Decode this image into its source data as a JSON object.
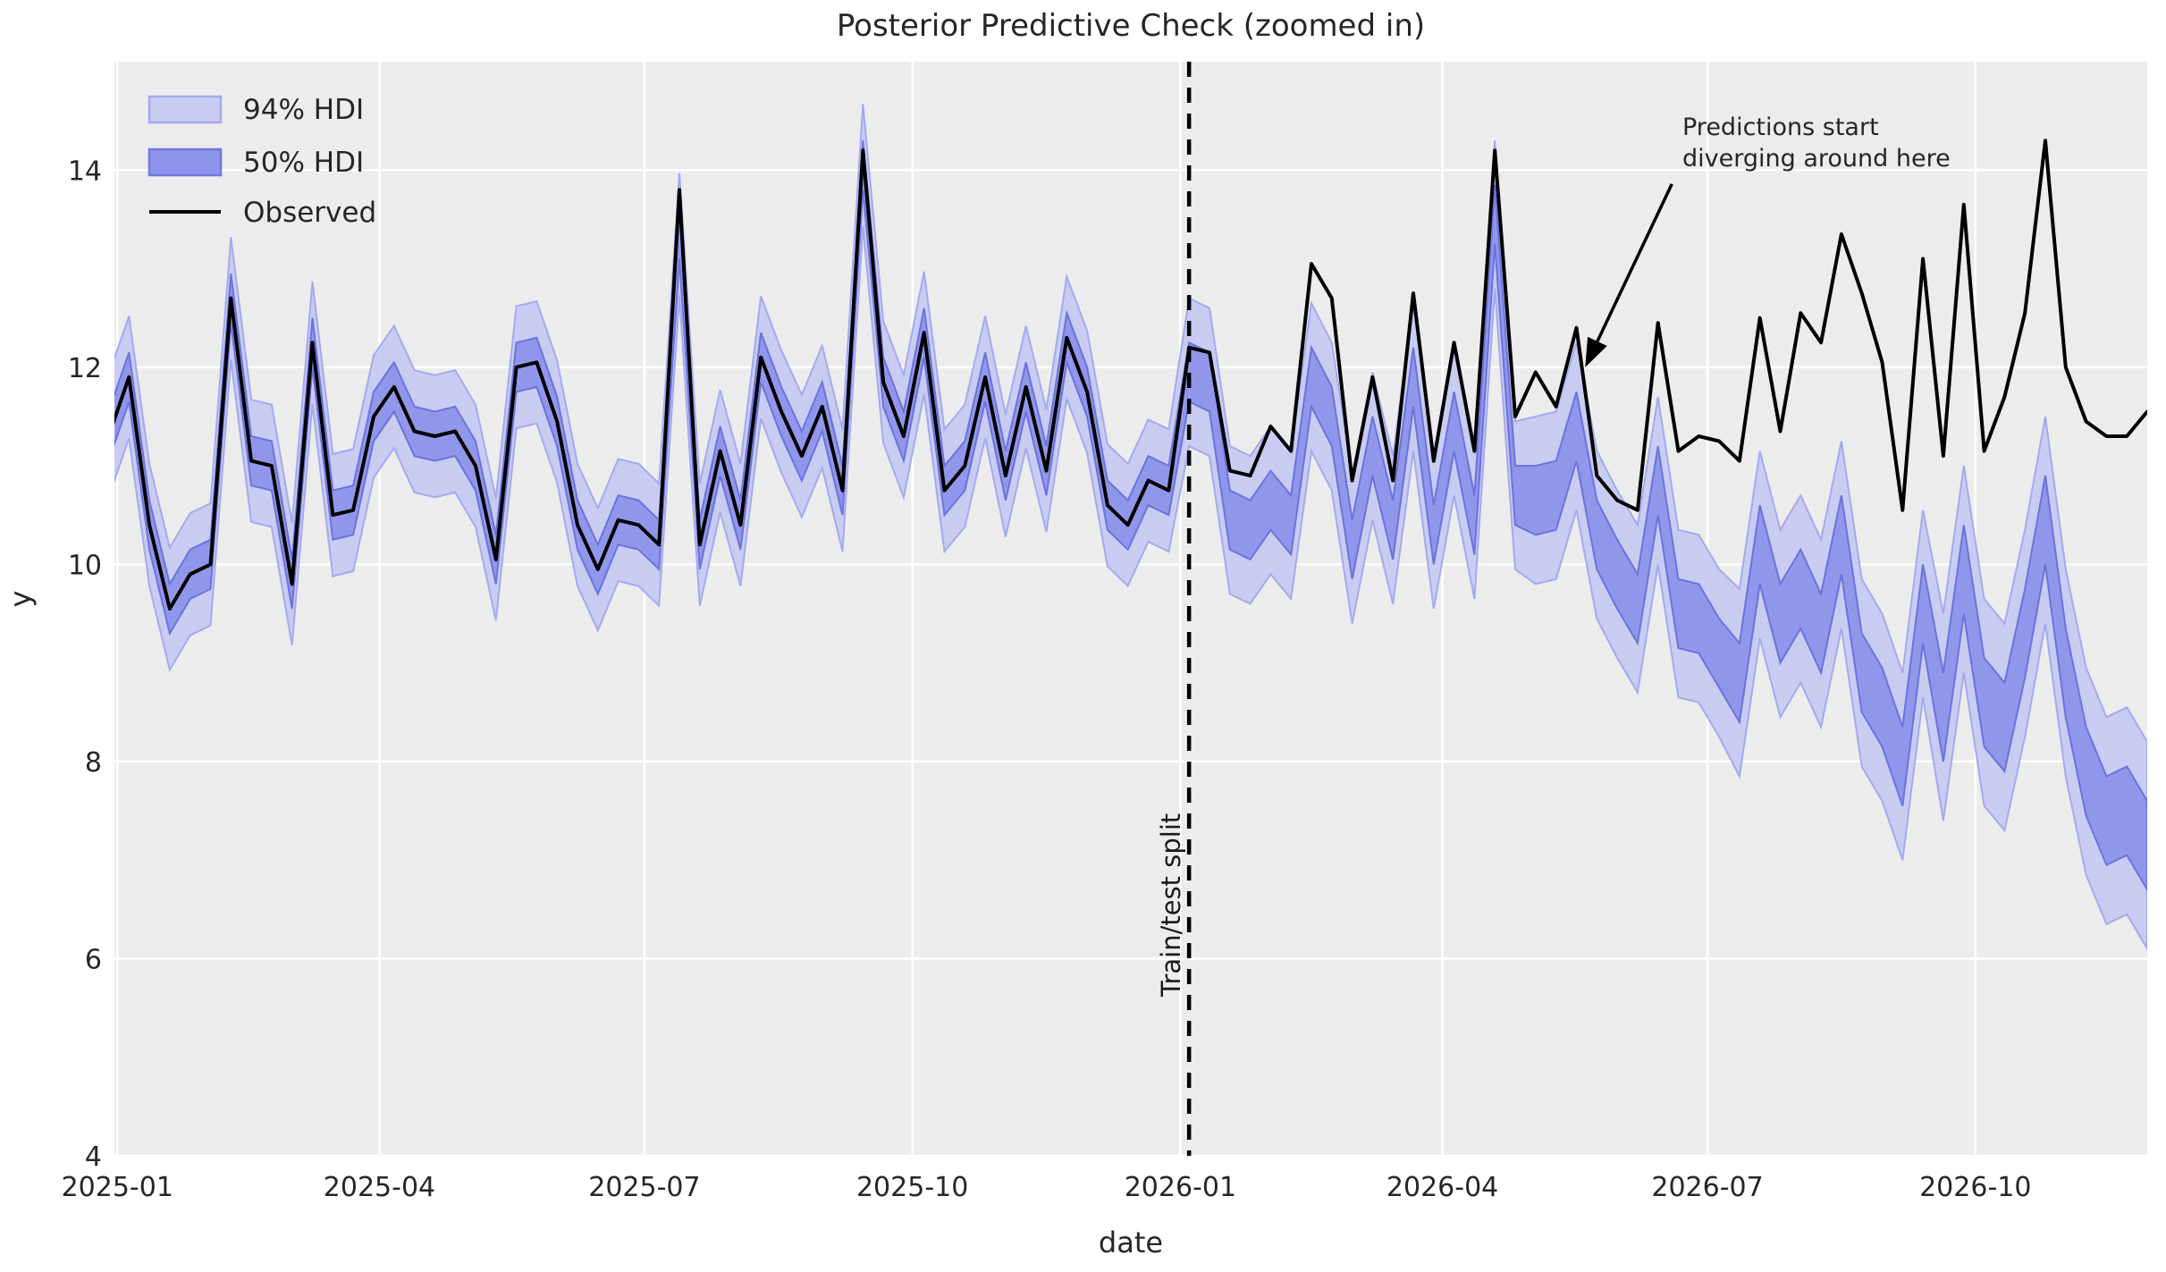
{
  "figure": {
    "title": "Posterior Predictive Check (zoomed in)",
    "x_axis": {
      "label": "date",
      "tick_labels": [
        "2025-01",
        "2025-04",
        "2025-07",
        "2025-10",
        "2026-01",
        "2026-04",
        "2026-07",
        "2026-10"
      ],
      "tick_dates": [
        "2025-01-01",
        "2025-04-01",
        "2025-07-01",
        "2025-10-01",
        "2026-01-01",
        "2026-04-01",
        "2026-07-01",
        "2026-10-01"
      ]
    },
    "y_axis": {
      "label": "y",
      "ticks": [
        4,
        6,
        8,
        10,
        12,
        14
      ]
    },
    "legend": {
      "hdi94_label": "94% HDI",
      "hdi50_label": "50% HDI",
      "observed_label": "Observed"
    },
    "split_marker": {
      "date": "2026-01-04",
      "label": "Train/test split"
    },
    "callout": {
      "line1": "Predictions start",
      "line2": "diverging around here",
      "arrow_tip_date": "2026-05-20",
      "arrow_tip_y": 12.0
    },
    "colors": {
      "plot_background": "#ececec",
      "gridline": "#ffffff",
      "hdi94_fill": "#c7caf1",
      "hdi94_edge": "#a3aaee",
      "hdi50_fill": "#8d94e9",
      "hdi50_edge": "#6a73de",
      "observed": "#000000",
      "split_line": "#000000",
      "text": "#262626"
    }
  },
  "chart_data": {
    "type": "line",
    "title": "Posterior Predictive Check (zoomed in)",
    "xlabel": "date",
    "ylabel": "y",
    "grid": true,
    "legend_position": "upper left",
    "x": {
      "start_date": "2024-12-29",
      "step_days": 7,
      "n_points": 101,
      "xlim": [
        "2024-12-31",
        "2026-11-29"
      ]
    },
    "ylim": [
      4,
      15.1
    ],
    "observed": [
      11.3,
      11.9,
      10.4,
      9.55,
      9.9,
      10.0,
      12.7,
      11.05,
      11.0,
      9.8,
      12.25,
      10.5,
      10.55,
      11.5,
      11.8,
      11.35,
      11.3,
      11.35,
      11.0,
      10.05,
      12.0,
      12.05,
      11.45,
      10.4,
      9.95,
      10.45,
      10.4,
      10.2,
      13.8,
      10.2,
      11.15,
      10.4,
      12.1,
      11.55,
      11.1,
      11.6,
      10.75,
      14.2,
      11.85,
      11.3,
      12.35,
      10.75,
      11.0,
      11.9,
      10.9,
      11.8,
      10.95,
      12.3,
      11.75,
      10.6,
      10.4,
      10.85,
      10.75,
      12.2,
      12.15,
      10.95,
      10.9,
      11.4,
      11.15,
      13.05,
      12.7,
      10.85,
      11.9,
      10.85,
      12.75,
      11.05,
      12.25,
      11.15,
      14.2,
      11.5,
      11.95,
      11.6,
      12.4,
      10.9,
      10.65,
      10.55,
      12.45,
      11.15,
      11.3,
      11.25,
      11.05,
      12.5,
      11.35,
      12.55,
      12.25,
      13.35,
      12.75,
      12.05,
      10.55,
      13.1,
      11.1,
      13.65,
      11.15,
      11.7,
      12.55,
      14.3,
      12.0,
      11.45,
      11.3,
      11.3,
      11.55
    ],
    "posterior_median": [
      11.3,
      11.9,
      10.4,
      9.55,
      9.9,
      10.0,
      12.7,
      11.05,
      11.0,
      9.8,
      12.25,
      10.5,
      10.55,
      11.5,
      11.8,
      11.35,
      11.3,
      11.35,
      11.0,
      10.05,
      12.0,
      12.05,
      11.45,
      10.4,
      9.95,
      10.45,
      10.4,
      10.2,
      13.35,
      10.2,
      11.15,
      10.4,
      12.1,
      11.55,
      11.1,
      11.6,
      10.75,
      14.05,
      11.85,
      11.3,
      12.35,
      10.75,
      11.0,
      11.9,
      10.9,
      11.8,
      10.95,
      12.3,
      11.75,
      10.6,
      10.4,
      10.85,
      10.75,
      11.95,
      11.85,
      10.45,
      10.35,
      10.65,
      10.4,
      11.9,
      11.5,
      10.15,
      11.2,
      10.35,
      11.9,
      10.3,
      11.45,
      10.4,
      13.55,
      10.7,
      10.65,
      10.7,
      11.4,
      10.3,
      9.9,
      9.55,
      10.85,
      9.5,
      9.45,
      9.1,
      8.8,
      10.2,
      9.4,
      9.75,
      9.3,
      10.3,
      8.9,
      8.55,
      7.95,
      9.6,
      8.45,
      9.95,
      8.6,
      8.35,
      9.3,
      10.45,
      8.9,
      7.9,
      7.4,
      7.5,
      7.15
    ],
    "hdi94_halfwidth": [
      0.62,
      0.62,
      0.62,
      0.62,
      0.62,
      0.62,
      0.62,
      0.62,
      0.62,
      0.62,
      0.62,
      0.62,
      0.62,
      0.62,
      0.62,
      0.62,
      0.62,
      0.62,
      0.62,
      0.62,
      0.62,
      0.62,
      0.62,
      0.62,
      0.62,
      0.62,
      0.62,
      0.62,
      0.62,
      0.62,
      0.62,
      0.62,
      0.62,
      0.62,
      0.62,
      0.62,
      0.62,
      0.62,
      0.62,
      0.62,
      0.62,
      0.62,
      0.62,
      0.62,
      0.62,
      0.62,
      0.62,
      0.62,
      0.62,
      0.62,
      0.62,
      0.62,
      0.62,
      0.75,
      0.75,
      0.75,
      0.75,
      0.75,
      0.75,
      0.75,
      0.75,
      0.75,
      0.75,
      0.75,
      0.75,
      0.75,
      0.75,
      0.75,
      0.75,
      0.75,
      0.85,
      0.85,
      0.85,
      0.85,
      0.85,
      0.85,
      0.85,
      0.85,
      0.85,
      0.85,
      0.95,
      0.95,
      0.95,
      0.95,
      0.95,
      0.95,
      0.95,
      0.95,
      0.95,
      0.95,
      1.05,
      1.05,
      1.05,
      1.05,
      1.05,
      1.05,
      1.05,
      1.05,
      1.05,
      1.05,
      1.05
    ],
    "hdi50_halfwidth": [
      0.25,
      0.25,
      0.25,
      0.25,
      0.25,
      0.25,
      0.25,
      0.25,
      0.25,
      0.25,
      0.25,
      0.25,
      0.25,
      0.25,
      0.25,
      0.25,
      0.25,
      0.25,
      0.25,
      0.25,
      0.25,
      0.25,
      0.25,
      0.25,
      0.25,
      0.25,
      0.25,
      0.25,
      0.25,
      0.25,
      0.25,
      0.25,
      0.25,
      0.25,
      0.25,
      0.25,
      0.25,
      0.25,
      0.25,
      0.25,
      0.25,
      0.25,
      0.25,
      0.25,
      0.25,
      0.25,
      0.25,
      0.25,
      0.25,
      0.25,
      0.25,
      0.25,
      0.25,
      0.3,
      0.3,
      0.3,
      0.3,
      0.3,
      0.3,
      0.3,
      0.3,
      0.3,
      0.3,
      0.3,
      0.3,
      0.3,
      0.3,
      0.3,
      0.3,
      0.3,
      0.35,
      0.35,
      0.35,
      0.35,
      0.35,
      0.35,
      0.35,
      0.35,
      0.35,
      0.35,
      0.4,
      0.4,
      0.4,
      0.4,
      0.4,
      0.4,
      0.4,
      0.4,
      0.4,
      0.4,
      0.45,
      0.45,
      0.45,
      0.45,
      0.45,
      0.45,
      0.45,
      0.45,
      0.45,
      0.45,
      0.45
    ],
    "series_names": [
      "94% HDI",
      "50% HDI",
      "Observed"
    ]
  }
}
